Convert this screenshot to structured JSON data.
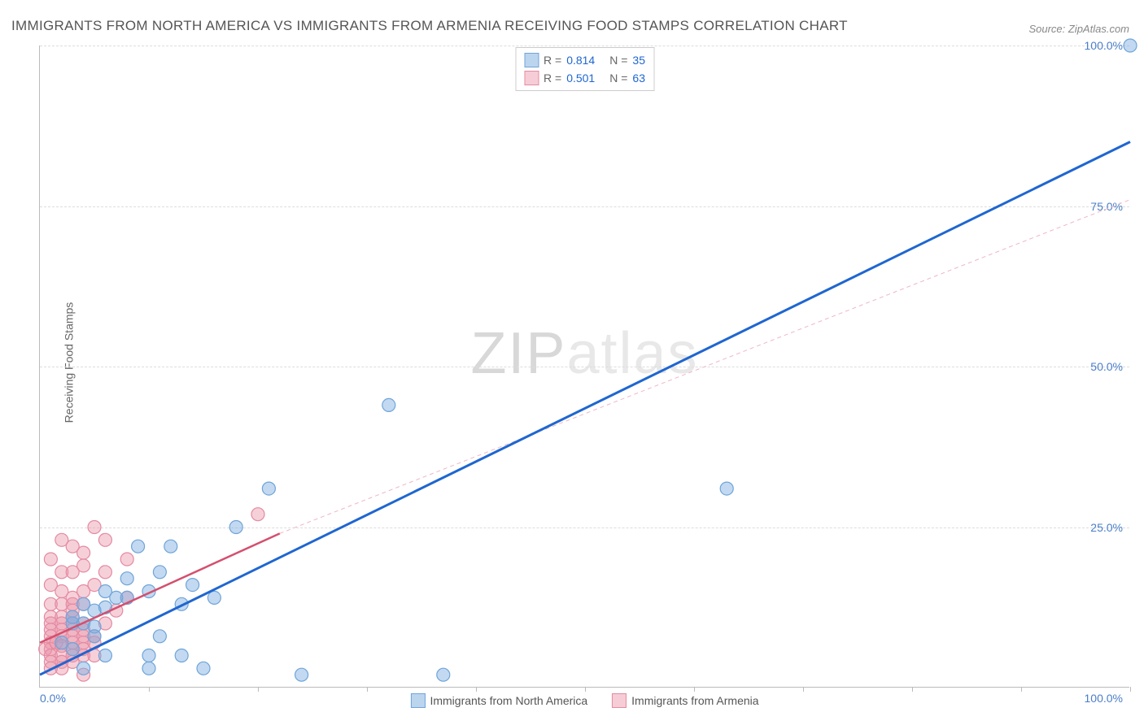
{
  "title": "IMMIGRANTS FROM NORTH AMERICA VS IMMIGRANTS FROM ARMENIA RECEIVING FOOD STAMPS CORRELATION CHART",
  "source": "Source: ZipAtlas.com",
  "ylabel": "Receiving Food Stamps",
  "watermark_zip": "ZIP",
  "watermark_atlas": "atlas",
  "xlim": [
    0,
    100
  ],
  "ylim": [
    0,
    100
  ],
  "yticks": [
    {
      "v": 25,
      "label": "25.0%"
    },
    {
      "v": 50,
      "label": "50.0%"
    },
    {
      "v": 75,
      "label": "75.0%"
    },
    {
      "v": 100,
      "label": "100.0%"
    }
  ],
  "xtick_left": "0.0%",
  "xtick_right": "100.0%",
  "xaxis_minor_ticks": [
    10,
    20,
    30,
    40,
    50,
    60,
    70,
    80,
    90,
    100
  ],
  "ytick_color": "#4a7ec9",
  "grid_color": "#dddddd",
  "axis_color": "#bbbbbb",
  "series": [
    {
      "id": "north_america",
      "name": "Immigrants from North America",
      "color_fill": "rgba(120,170,225,0.45)",
      "color_stroke": "#6fa4d9",
      "swatch_fill": "#bcd5ef",
      "swatch_border": "#6fa4d9",
      "r_label": "R =",
      "r_value": "0.814",
      "n_label": "N =",
      "n_value": "35",
      "marker_radius": 8,
      "trend": {
        "x1": 0,
        "y1": 2,
        "x2": 100,
        "y2": 85,
        "stroke": "#1f66d0",
        "width": 3,
        "dash": "none"
      },
      "trend_ext": null,
      "points": [
        [
          100,
          100
        ],
        [
          32,
          44
        ],
        [
          63,
          31
        ],
        [
          21,
          31
        ],
        [
          37,
          2
        ],
        [
          24,
          2
        ],
        [
          18,
          25
        ],
        [
          12,
          22
        ],
        [
          14,
          16
        ],
        [
          9,
          22
        ],
        [
          11,
          8
        ],
        [
          10,
          5
        ],
        [
          10,
          15
        ],
        [
          8,
          14
        ],
        [
          6,
          12.5
        ],
        [
          5,
          12
        ],
        [
          4,
          10
        ],
        [
          3,
          10
        ],
        [
          3,
          11
        ],
        [
          5,
          9.5
        ],
        [
          5,
          8
        ],
        [
          4,
          13
        ],
        [
          6,
          15
        ],
        [
          7,
          14
        ],
        [
          15,
          3
        ],
        [
          10,
          3
        ],
        [
          13,
          5
        ],
        [
          3,
          6
        ],
        [
          4,
          3
        ],
        [
          2,
          7
        ],
        [
          11,
          18
        ],
        [
          13,
          13
        ],
        [
          16,
          14
        ],
        [
          8,
          17
        ],
        [
          6,
          5
        ]
      ]
    },
    {
      "id": "armenia",
      "name": "Immigrants from Armenia",
      "color_fill": "rgba(235,150,170,0.45)",
      "color_stroke": "#e48aa2",
      "swatch_fill": "#f6cdd7",
      "swatch_border": "#e48aa2",
      "r_label": "R =",
      "r_value": "0.501",
      "n_label": "N =",
      "n_value": "63",
      "marker_radius": 8,
      "trend": {
        "x1": 0,
        "y1": 7,
        "x2": 22,
        "y2": 24,
        "stroke": "#d4506e",
        "width": 2.5,
        "dash": "none"
      },
      "trend_ext": {
        "x1": 22,
        "y1": 24,
        "x2": 100,
        "y2": 76,
        "stroke": "#eeb7c4",
        "width": 1,
        "dash": "5,4"
      },
      "points": [
        [
          20,
          27
        ],
        [
          2,
          23
        ],
        [
          3,
          22
        ],
        [
          5,
          25
        ],
        [
          4,
          21
        ],
        [
          6,
          23
        ],
        [
          1,
          20
        ],
        [
          2,
          18
        ],
        [
          3,
          18
        ],
        [
          1,
          16
        ],
        [
          4,
          19
        ],
        [
          2,
          15
        ],
        [
          1,
          13
        ],
        [
          3,
          14
        ],
        [
          2,
          13
        ],
        [
          4,
          15
        ],
        [
          3,
          13
        ],
        [
          5,
          16
        ],
        [
          1,
          11
        ],
        [
          2,
          11
        ],
        [
          3,
          11
        ],
        [
          1,
          10
        ],
        [
          2,
          10
        ],
        [
          3,
          12
        ],
        [
          4,
          13
        ],
        [
          1,
          9
        ],
        [
          2,
          9
        ],
        [
          3,
          10
        ],
        [
          1,
          8
        ],
        [
          2,
          8
        ],
        [
          3,
          9
        ],
        [
          4,
          10
        ],
        [
          1,
          7
        ],
        [
          2,
          7
        ],
        [
          3,
          8
        ],
        [
          4,
          9
        ],
        [
          1,
          6
        ],
        [
          0.5,
          6
        ],
        [
          1.5,
          7
        ],
        [
          2,
          6.5
        ],
        [
          3,
          7
        ],
        [
          4,
          8
        ],
        [
          1,
          5
        ],
        [
          2,
          5
        ],
        [
          3,
          6
        ],
        [
          4,
          7
        ],
        [
          5,
          8
        ],
        [
          1,
          4
        ],
        [
          2,
          4
        ],
        [
          3,
          5
        ],
        [
          4,
          6
        ],
        [
          5,
          7
        ],
        [
          2,
          3
        ],
        [
          3,
          4
        ],
        [
          4,
          5
        ],
        [
          1,
          3
        ],
        [
          5,
          5
        ],
        [
          6,
          10
        ],
        [
          7,
          12
        ],
        [
          8,
          14
        ],
        [
          6,
          18
        ],
        [
          8,
          20
        ],
        [
          4,
          2
        ]
      ]
    }
  ],
  "legend_bottom": [
    {
      "name": "Immigrants from North America",
      "swatch_fill": "#bcd5ef",
      "swatch_border": "#6fa4d9"
    },
    {
      "name": "Immigrants from Armenia",
      "swatch_fill": "#f6cdd7",
      "swatch_border": "#e48aa2"
    }
  ],
  "legend_text_color": "#666666",
  "legend_value_color": "#1f66d0"
}
